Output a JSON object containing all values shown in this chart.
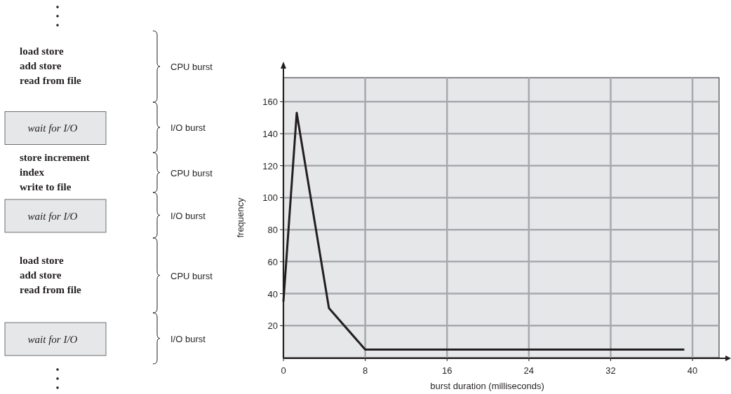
{
  "chart_data": [
    {
      "type": "other",
      "categories": [
        "CPU burst",
        "I/O burst",
        "CPU burst",
        "I/O burst",
        "CPU burst",
        "I/O burst"
      ],
      "annotations": [
        "load store\nadd store\nread from file",
        "wait for I/O",
        "store increment\nindex\nwrite to file",
        "wait for I/O",
        "load store\nadd store\nread from file",
        "wait for I/O"
      ]
    },
    {
      "type": "line",
      "xlabel": "burst duration (milliseconds)",
      "ylabel": "frequency",
      "x": [
        0,
        1.3,
        4.45,
        8,
        39.2
      ],
      "series": [
        {
          "color": "#231f20",
          "values": [
            35,
            153,
            31,
            5,
            5
          ]
        }
      ],
      "xlim": [
        0,
        42.6
      ],
      "ylim": [
        0,
        175
      ],
      "xticks": [
        0,
        8,
        16,
        24,
        32,
        40
      ],
      "yticks": [
        20,
        40,
        60,
        80,
        100,
        120,
        140,
        160
      ],
      "grid": true
    }
  ]
}
